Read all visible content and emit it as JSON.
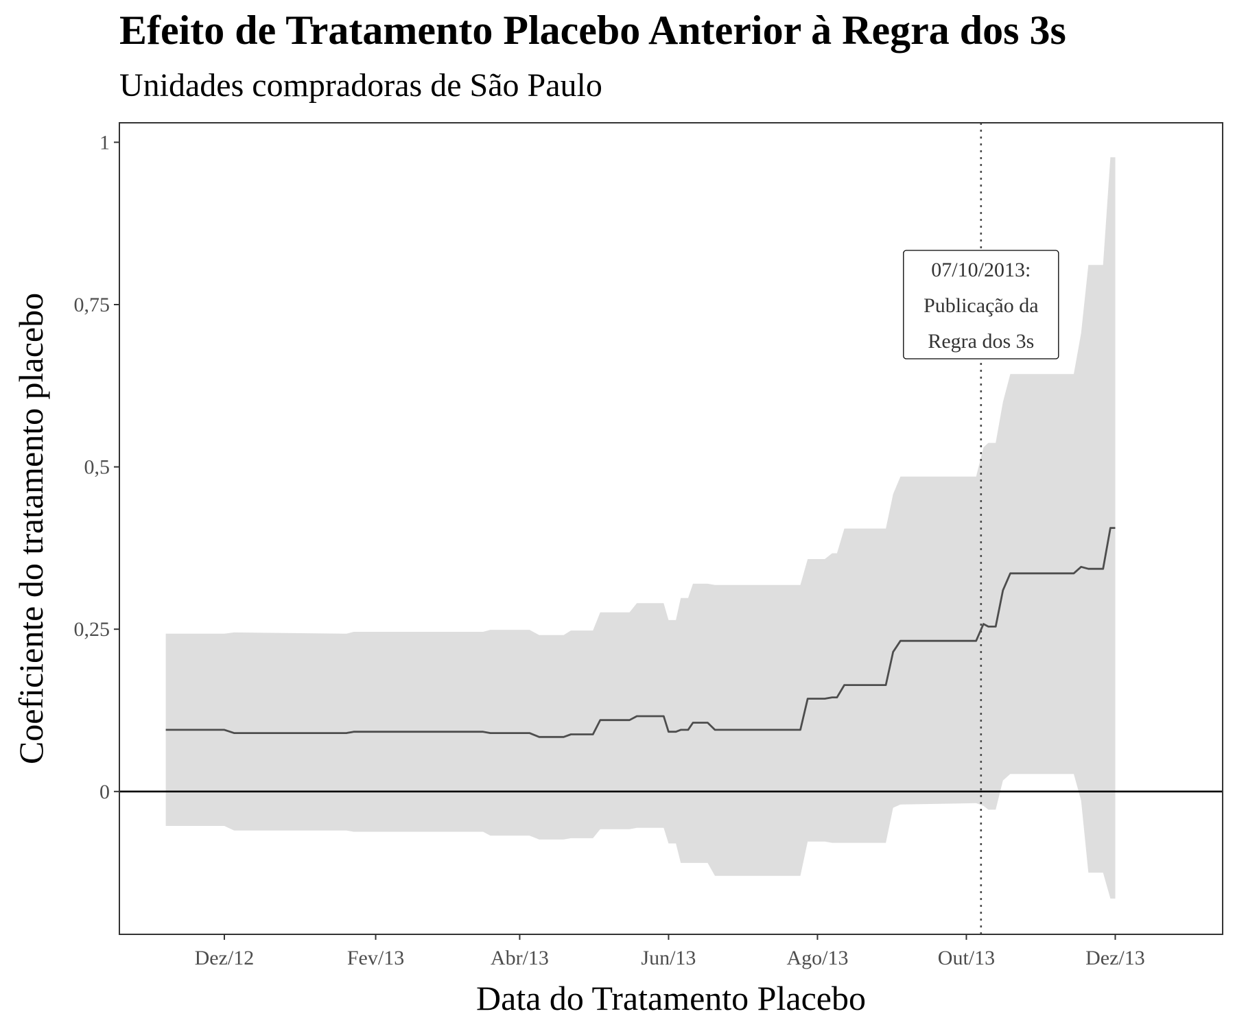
{
  "chart_data": {
    "type": "line",
    "title": "Efeito de Tratamento Placebo Anterior à Regra dos 3s",
    "subtitle": "Unidades compradoras de São Paulo",
    "xlabel": "Data do Tratamento Placebo",
    "ylabel": "Coeficiente do tratamento placebo",
    "x_ticks": [
      "2012-12-01",
      "2013-02-01",
      "2013-04-01",
      "2013-06-01",
      "2013-08-01",
      "2013-10-01",
      "2013-12-01"
    ],
    "x_tick_labels": [
      "Dez/12",
      "Fev/13",
      "Abr/13",
      "Jun/13",
      "Ago/13",
      "Out/13",
      "Dez/13"
    ],
    "xlim": [
      "2012-10-19",
      "2014-01-14"
    ],
    "y_ticks": [
      0,
      0.25,
      0.5,
      0.75,
      1
    ],
    "y_tick_labels": [
      "0",
      "0,25",
      "0,5",
      "0,75",
      "1"
    ],
    "ylim": [
      -0.22,
      1.03
    ],
    "grid": false,
    "reference_lines": {
      "horizontal": 0,
      "vertical": "2013-10-07"
    },
    "annotation": {
      "x": "2013-10-07",
      "y": 0.75,
      "lines": [
        "07/10/2013:",
        "Publicação da",
        "Regra dos 3s"
      ]
    },
    "colors": {
      "line": "#4d4d4d",
      "band": "#dedede",
      "zero_line": "#000000",
      "vline": "#4d4d4d"
    },
    "series": [
      {
        "points": [
          {
            "x": "2012-11-07",
            "y": 0.095,
            "lo": -0.053,
            "hi": 0.243
          },
          {
            "x": "2012-12-01",
            "y": 0.095,
            "lo": -0.053,
            "hi": 0.243
          },
          {
            "x": "2012-12-05",
            "y": 0.09,
            "lo": -0.06,
            "hi": 0.245
          },
          {
            "x": "2013-01-20",
            "y": 0.09,
            "lo": -0.06,
            "hi": 0.243
          },
          {
            "x": "2013-01-23",
            "y": 0.092,
            "lo": -0.062,
            "hi": 0.246
          },
          {
            "x": "2013-03-17",
            "y": 0.092,
            "lo": -0.062,
            "hi": 0.246
          },
          {
            "x": "2013-03-20",
            "y": 0.09,
            "lo": -0.068,
            "hi": 0.249
          },
          {
            "x": "2013-04-05",
            "y": 0.09,
            "lo": -0.068,
            "hi": 0.249
          },
          {
            "x": "2013-04-09",
            "y": 0.084,
            "lo": -0.074,
            "hi": 0.241
          },
          {
            "x": "2013-04-19",
            "y": 0.084,
            "lo": -0.074,
            "hi": 0.241
          },
          {
            "x": "2013-04-22",
            "y": 0.088,
            "lo": -0.072,
            "hi": 0.248
          },
          {
            "x": "2013-05-01",
            "y": 0.088,
            "lo": -0.072,
            "hi": 0.248
          },
          {
            "x": "2013-05-04",
            "y": 0.11,
            "lo": -0.058,
            "hi": 0.276
          },
          {
            "x": "2013-05-16",
            "y": 0.11,
            "lo": -0.058,
            "hi": 0.276
          },
          {
            "x": "2013-05-19",
            "y": 0.116,
            "lo": -0.056,
            "hi": 0.29
          },
          {
            "x": "2013-05-30",
            "y": 0.116,
            "lo": -0.056,
            "hi": 0.29
          },
          {
            "x": "2013-06-01",
            "y": 0.092,
            "lo": -0.08,
            "hi": 0.264
          },
          {
            "x": "2013-06-04",
            "y": 0.092,
            "lo": -0.08,
            "hi": 0.264
          },
          {
            "x": "2013-06-06",
            "y": 0.095,
            "lo": -0.11,
            "hi": 0.298
          },
          {
            "x": "2013-06-09",
            "y": 0.095,
            "lo": -0.11,
            "hi": 0.298
          },
          {
            "x": "2013-06-11",
            "y": 0.106,
            "lo": -0.11,
            "hi": 0.32
          },
          {
            "x": "2013-06-17",
            "y": 0.106,
            "lo": -0.11,
            "hi": 0.32
          },
          {
            "x": "2013-06-20",
            "y": 0.095,
            "lo": -0.13,
            "hi": 0.318
          },
          {
            "x": "2013-07-25",
            "y": 0.095,
            "lo": -0.13,
            "hi": 0.318
          },
          {
            "x": "2013-07-28",
            "y": 0.143,
            "lo": -0.077,
            "hi": 0.358
          },
          {
            "x": "2013-08-04",
            "y": 0.143,
            "lo": -0.077,
            "hi": 0.358
          },
          {
            "x": "2013-08-07",
            "y": 0.145,
            "lo": -0.079,
            "hi": 0.367
          },
          {
            "x": "2013-08-09",
            "y": 0.145,
            "lo": -0.079,
            "hi": 0.367
          },
          {
            "x": "2013-08-12",
            "y": 0.164,
            "lo": -0.079,
            "hi": 0.405
          },
          {
            "x": "2013-08-29",
            "y": 0.164,
            "lo": -0.079,
            "hi": 0.405
          },
          {
            "x": "2013-09-01",
            "y": 0.215,
            "lo": -0.025,
            "hi": 0.458
          },
          {
            "x": "2013-09-04",
            "y": 0.232,
            "lo": -0.02,
            "hi": 0.485
          },
          {
            "x": "2013-10-05",
            "y": 0.232,
            "lo": -0.018,
            "hi": 0.485
          },
          {
            "x": "2013-10-08",
            "y": 0.258,
            "lo": -0.022,
            "hi": 0.53
          },
          {
            "x": "2013-10-10",
            "y": 0.254,
            "lo": -0.028,
            "hi": 0.537
          },
          {
            "x": "2013-10-13",
            "y": 0.254,
            "lo": -0.028,
            "hi": 0.537
          },
          {
            "x": "2013-10-16",
            "y": 0.31,
            "lo": 0.017,
            "hi": 0.6
          },
          {
            "x": "2013-10-19",
            "y": 0.336,
            "lo": 0.027,
            "hi": 0.643
          },
          {
            "x": "2013-11-14",
            "y": 0.336,
            "lo": 0.027,
            "hi": 0.643
          },
          {
            "x": "2013-11-17",
            "y": 0.346,
            "lo": -0.014,
            "hi": 0.706
          },
          {
            "x": "2013-11-20",
            "y": 0.343,
            "lo": -0.125,
            "hi": 0.811
          },
          {
            "x": "2013-11-26",
            "y": 0.343,
            "lo": -0.125,
            "hi": 0.811
          },
          {
            "x": "2013-11-29",
            "y": 0.406,
            "lo": -0.165,
            "hi": 0.977
          },
          {
            "x": "2013-12-01",
            "y": 0.406,
            "lo": -0.165,
            "hi": 0.977
          }
        ]
      }
    ]
  }
}
